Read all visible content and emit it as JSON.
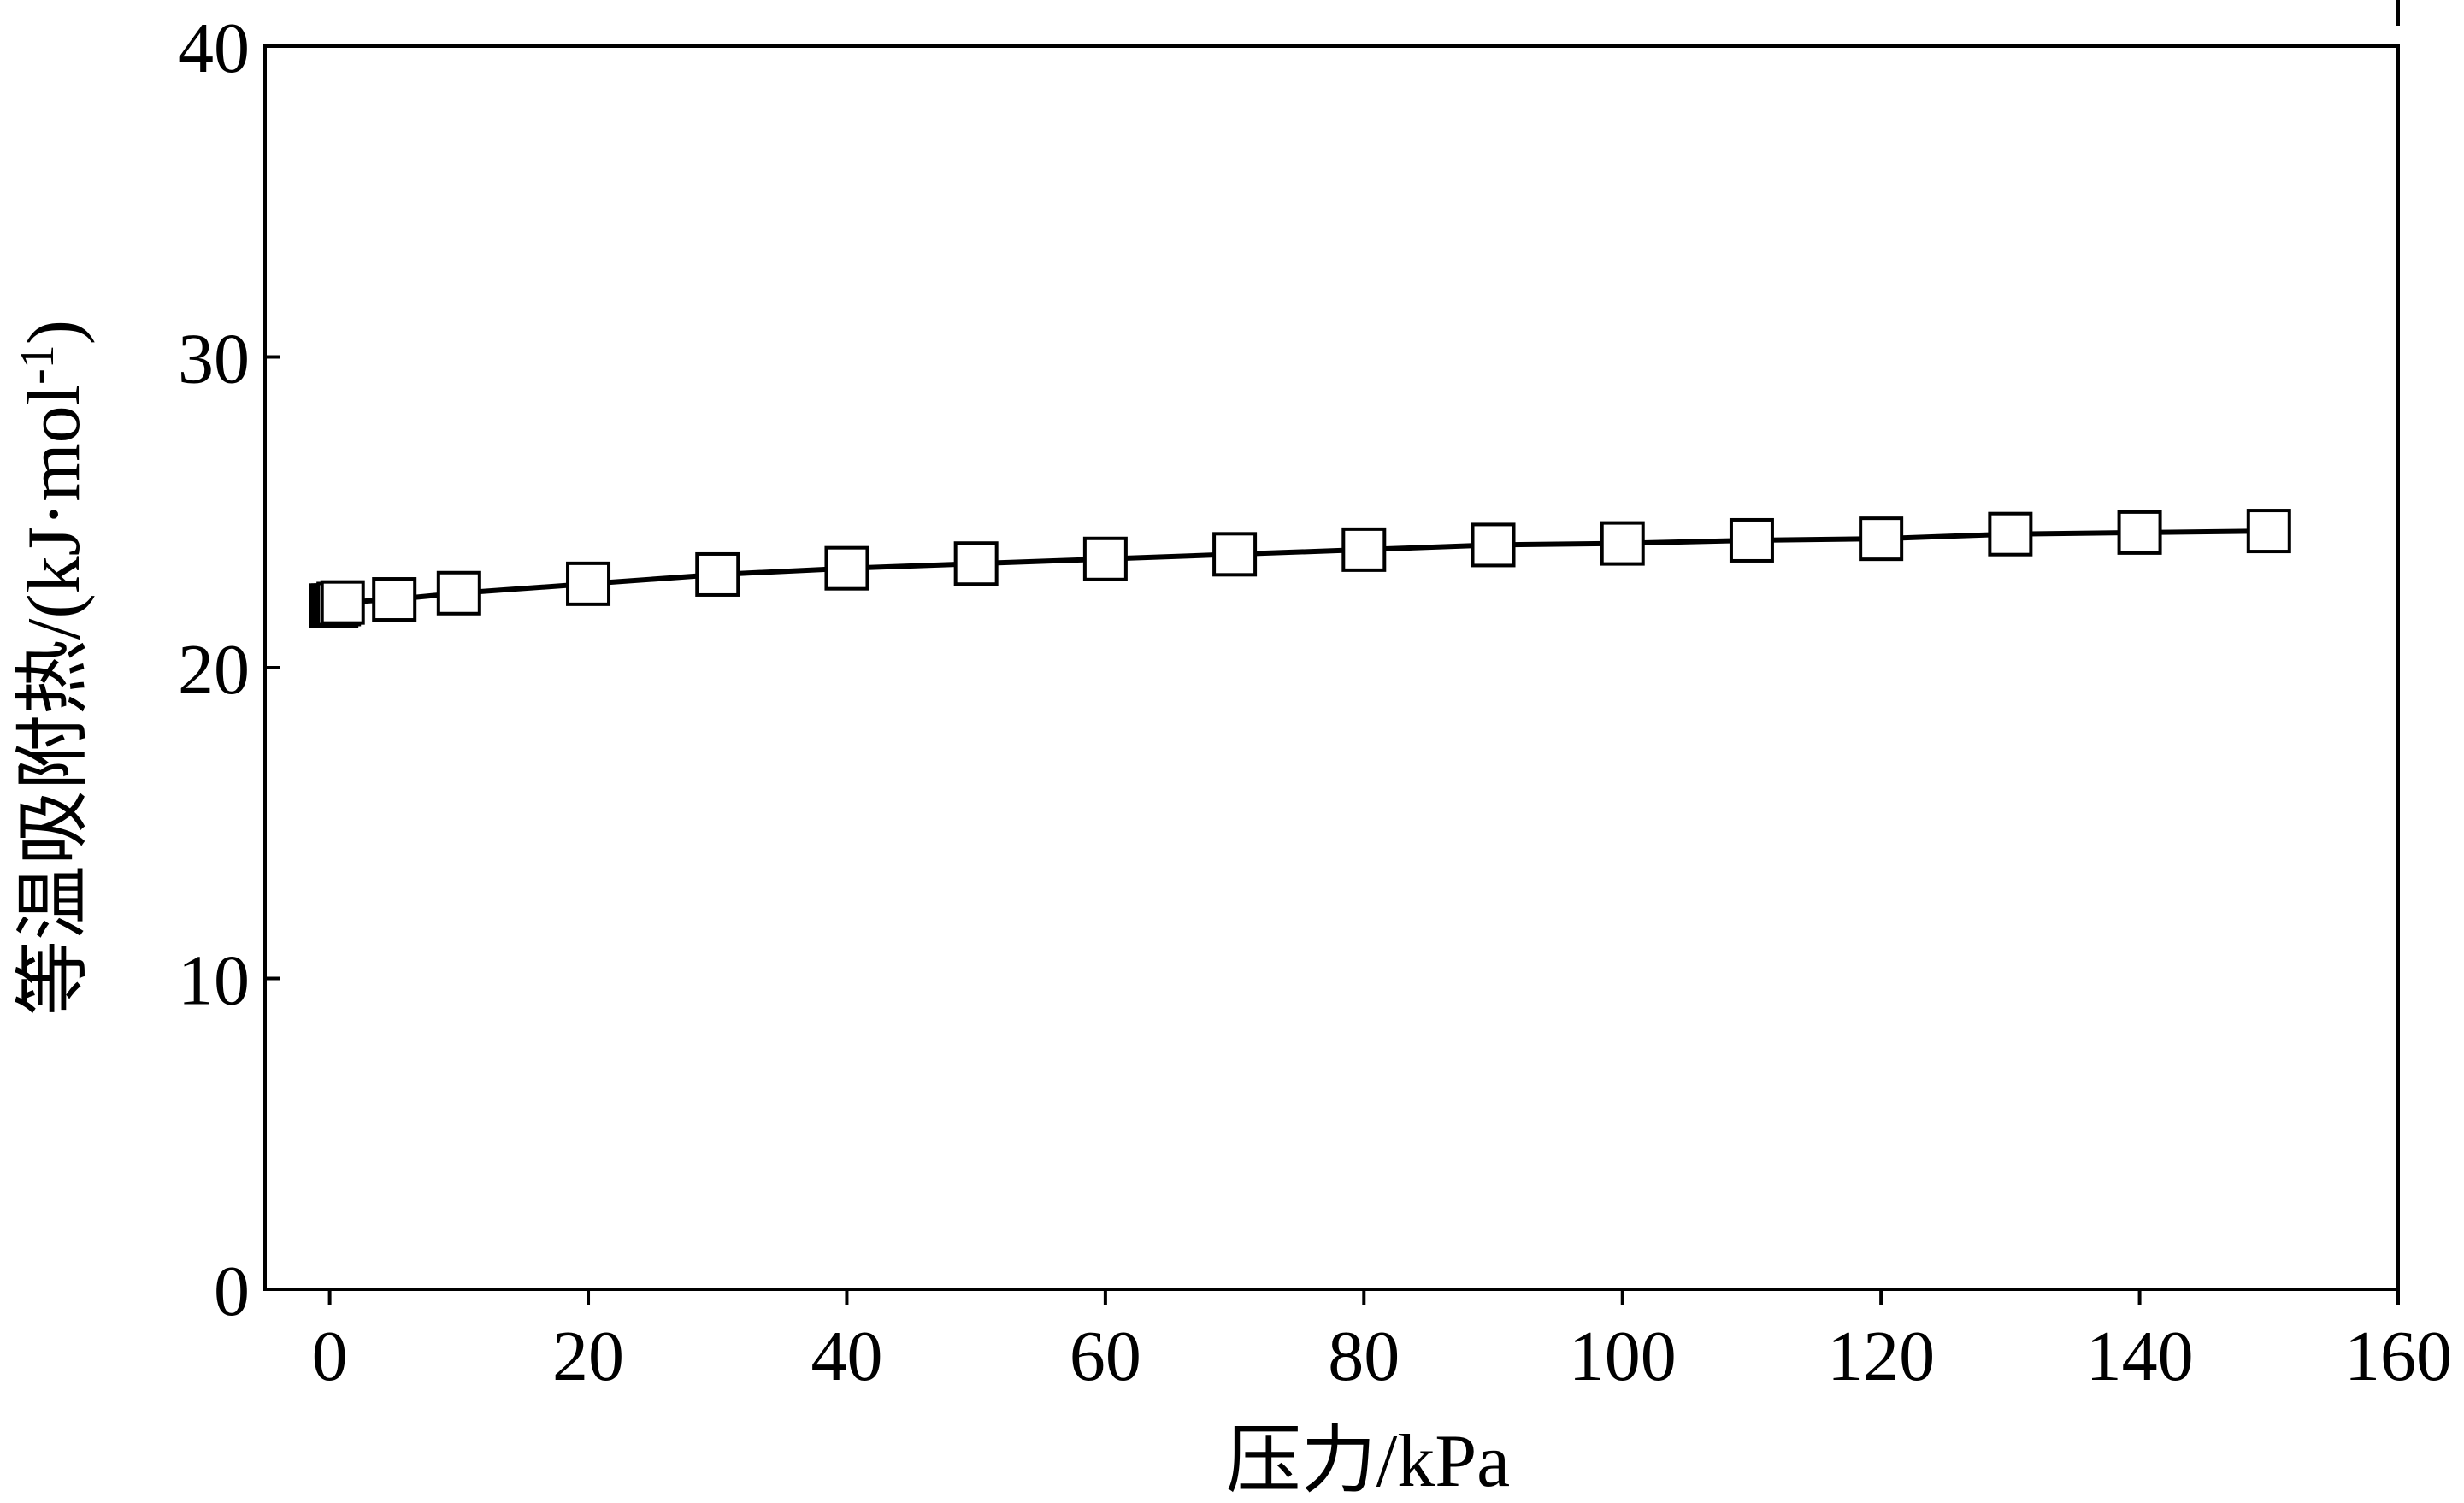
{
  "chart_data": {
    "type": "line",
    "title": "",
    "xlabel": "压力/kPa",
    "ylabel": "等温吸附热/(kJ·mol",
    "ylabel_superscript": "-1",
    "ylabel_close": ")",
    "xlim": [
      -5,
      160
    ],
    "ylim": [
      0,
      40
    ],
    "xticks": [
      0,
      20,
      40,
      60,
      80,
      100,
      120,
      140,
      160
    ],
    "yticks": [
      0,
      10,
      20,
      30,
      40
    ],
    "grid": false,
    "legend": "none",
    "series": [
      {
        "marker": "open-square",
        "color": "#000000",
        "x": [
          0.1,
          0.3,
          0.5,
          0.7,
          1,
          5,
          10,
          20,
          30,
          40,
          50,
          60,
          70,
          80,
          90,
          100,
          110,
          120,
          130,
          140,
          150
        ],
        "y": [
          22.0,
          22.0,
          22.0,
          22.05,
          22.1,
          22.2,
          22.4,
          22.7,
          23.0,
          23.2,
          23.35,
          23.5,
          23.65,
          23.8,
          23.95,
          24.0,
          24.1,
          24.15,
          24.3,
          24.35,
          24.4
        ]
      }
    ]
  }
}
